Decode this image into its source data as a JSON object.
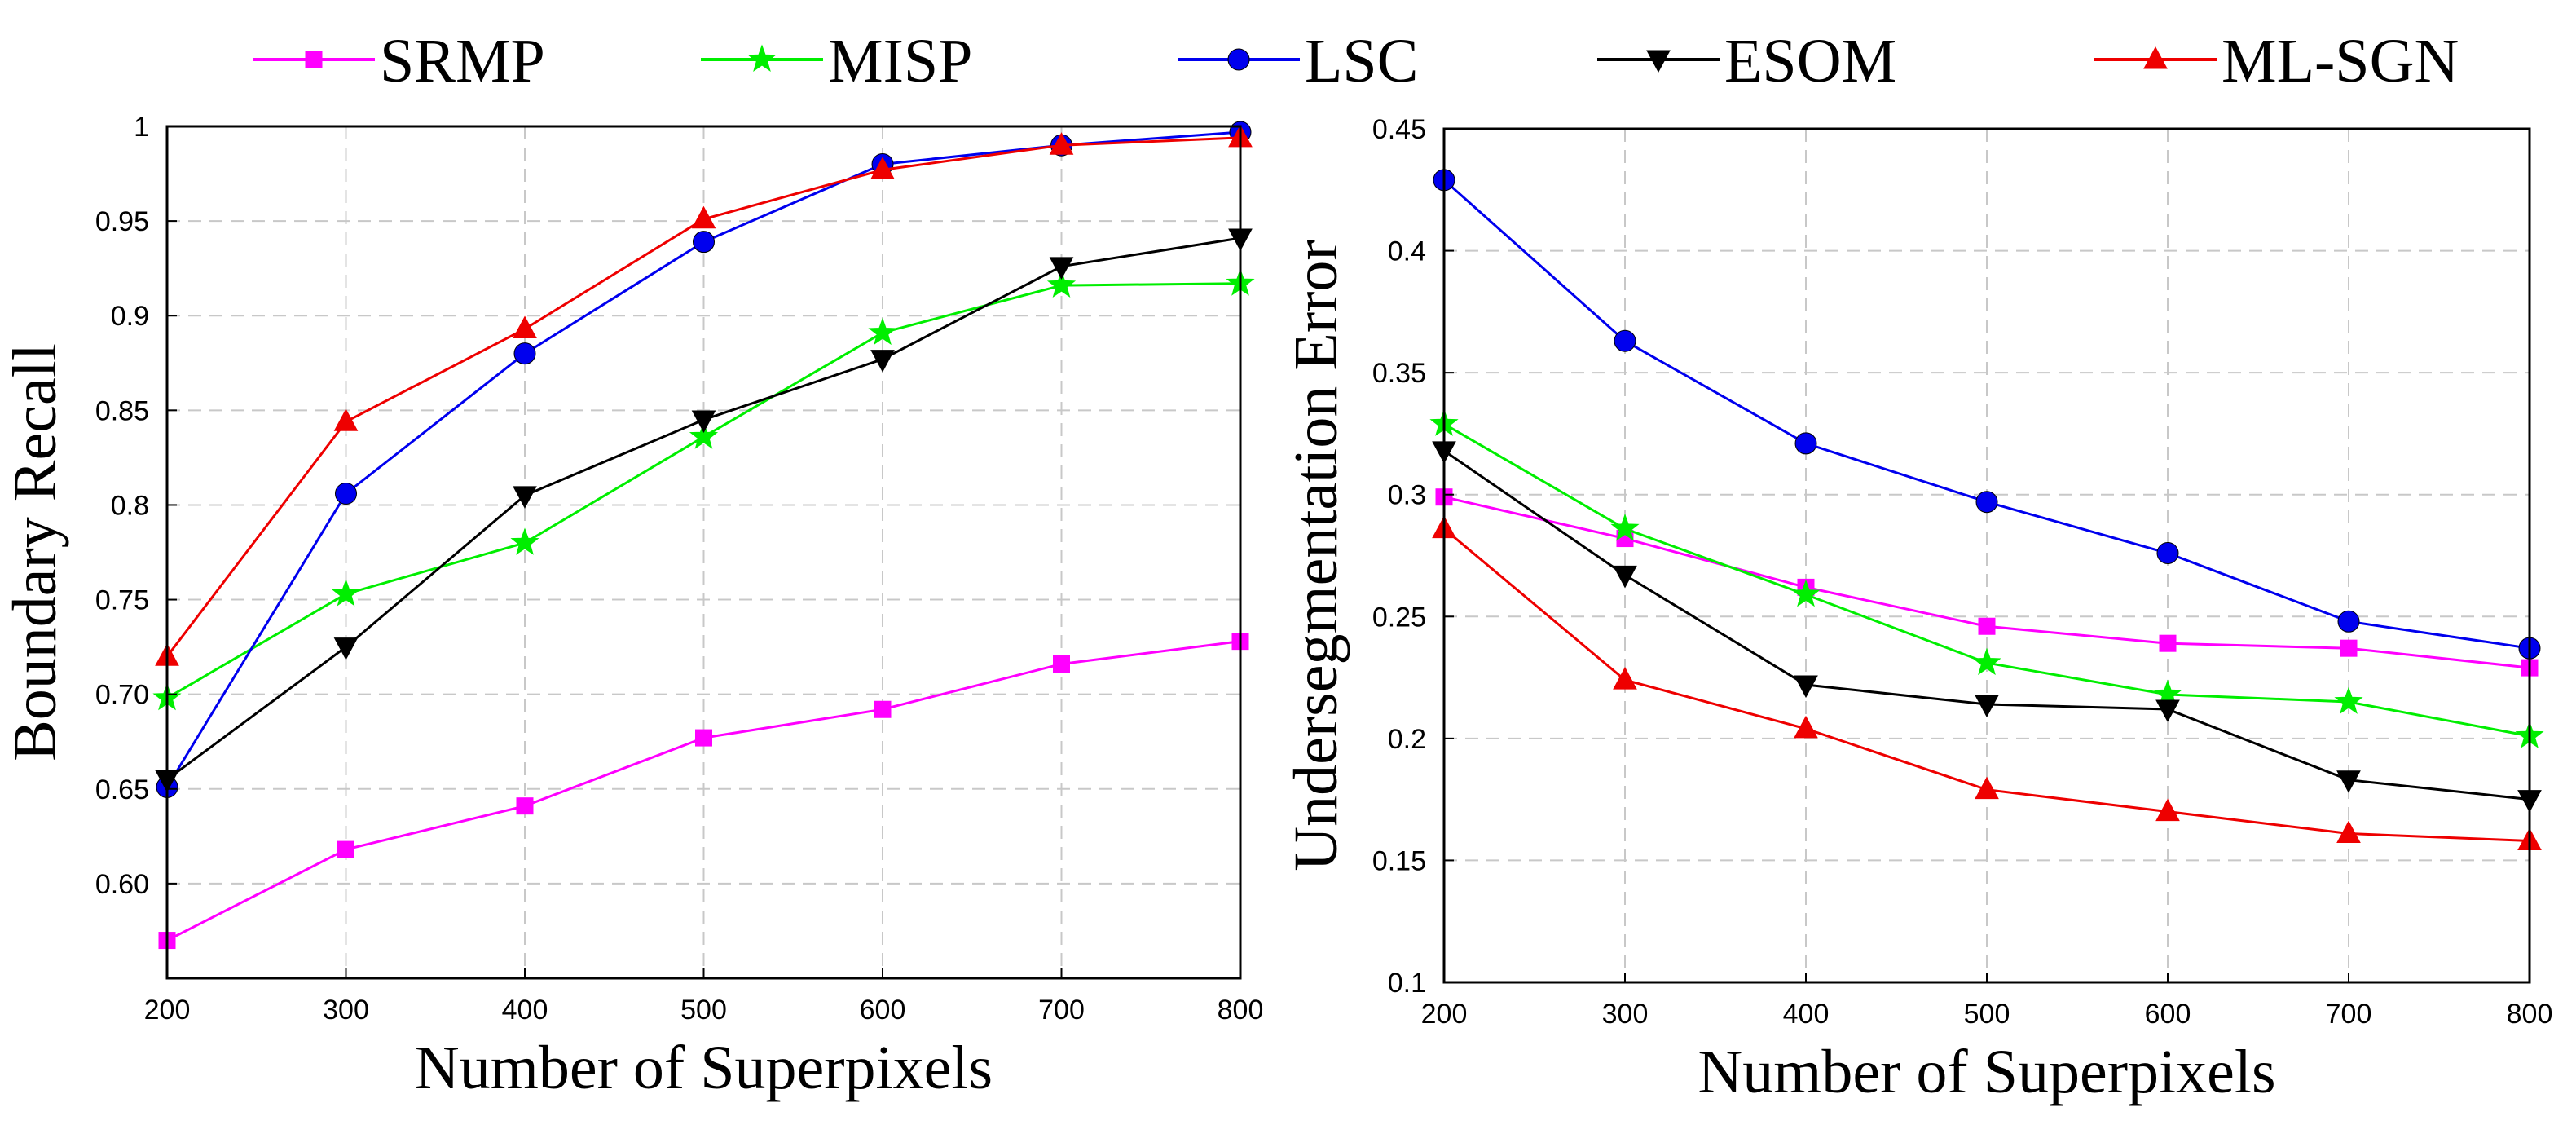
{
  "legend": {
    "placement": "top",
    "entries": [
      {
        "name": "SRMP",
        "color": "#ff00ff",
        "marker": "square"
      },
      {
        "name": "MISP",
        "color": "#00ee00",
        "marker": "star"
      },
      {
        "name": "LSC",
        "color": "#0000ee",
        "marker": "circle"
      },
      {
        "name": "ESOM",
        "color": "#000000",
        "marker": "triangle-down"
      },
      {
        "name": "ML-SGN",
        "color": "#ee0000",
        "marker": "triangle-up"
      }
    ]
  },
  "chart_data": [
    {
      "type": "line",
      "xlabel": "Number of Superpixels",
      "ylabel": "Boundary Recall",
      "x": [
        200,
        300,
        400,
        500,
        600,
        700,
        800
      ],
      "xlim": [
        200,
        800
      ],
      "ylim": [
        0.55,
        1.0
      ],
      "grid": true,
      "xticks": [
        "200",
        "300",
        "400",
        "500",
        "600",
        "700",
        "800"
      ],
      "yticks": [
        {
          "value": 0.6,
          "label": "0.60"
        },
        {
          "value": 0.65,
          "label": "0.65"
        },
        {
          "value": 0.7,
          "label": "0.70"
        },
        {
          "value": 0.75,
          "label": "0.75"
        },
        {
          "value": 0.8,
          "label": "0.8"
        },
        {
          "value": 0.85,
          "label": "0.85"
        },
        {
          "value": 0.9,
          "label": "0.9"
        },
        {
          "value": 0.95,
          "label": "0.95"
        },
        {
          "value": 1.0,
          "label": "1"
        }
      ],
      "series": [
        {
          "name": "SRMP",
          "values": [
            0.57,
            0.618,
            0.641,
            0.677,
            0.692,
            0.716,
            0.728
          ]
        },
        {
          "name": "MISP",
          "values": [
            0.698,
            0.753,
            0.78,
            0.836,
            0.891,
            0.916,
            0.917
          ]
        },
        {
          "name": "LSC",
          "values": [
            0.651,
            0.806,
            0.88,
            0.939,
            0.98,
            0.99,
            0.997
          ]
        },
        {
          "name": "ESOM",
          "values": [
            0.655,
            0.725,
            0.805,
            0.845,
            0.877,
            0.926,
            0.941
          ]
        },
        {
          "name": "ML-SGN",
          "values": [
            0.72,
            0.844,
            0.893,
            0.951,
            0.977,
            0.99,
            0.994
          ]
        }
      ]
    },
    {
      "type": "line",
      "xlabel": "Number of Superpixels",
      "ylabel": "Undersegmentation Error",
      "x": [
        200,
        300,
        400,
        500,
        600,
        700,
        800
      ],
      "xlim": [
        200,
        800
      ],
      "ylim": [
        0.1,
        0.45
      ],
      "grid": true,
      "xticks": [
        "200",
        "300",
        "400",
        "500",
        "600",
        "700",
        "800"
      ],
      "yticks": [
        {
          "value": 0.1,
          "label": "0.1"
        },
        {
          "value": 0.15,
          "label": "0.15"
        },
        {
          "value": 0.2,
          "label": "0.2"
        },
        {
          "value": 0.25,
          "label": "0.25"
        },
        {
          "value": 0.3,
          "label": "0.3"
        },
        {
          "value": 0.35,
          "label": "0.35"
        },
        {
          "value": 0.4,
          "label": "0.4"
        },
        {
          "value": 0.45,
          "label": "0.45"
        }
      ],
      "series": [
        {
          "name": "SRMP",
          "values": [
            0.299,
            0.282,
            0.262,
            0.246,
            0.239,
            0.237,
            0.229
          ]
        },
        {
          "name": "MISP",
          "values": [
            0.329,
            0.286,
            0.259,
            0.231,
            0.218,
            0.215,
            0.201
          ]
        },
        {
          "name": "LSC",
          "values": [
            0.429,
            0.363,
            0.321,
            0.297,
            0.276,
            0.248,
            0.237
          ]
        },
        {
          "name": "ESOM",
          "values": [
            0.318,
            0.267,
            0.222,
            0.214,
            0.212,
            0.183,
            0.175
          ]
        },
        {
          "name": "ML-SGN",
          "values": [
            0.286,
            0.224,
            0.204,
            0.179,
            0.17,
            0.161,
            0.158
          ]
        }
      ]
    }
  ]
}
